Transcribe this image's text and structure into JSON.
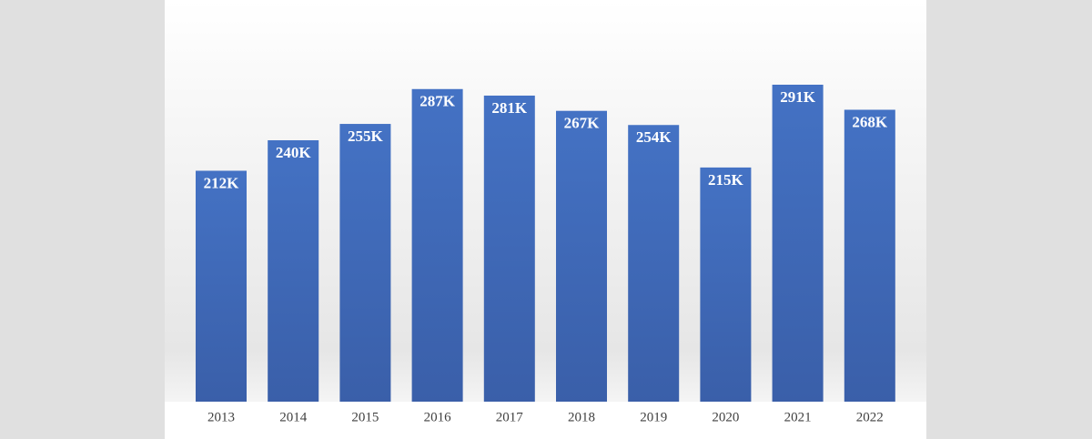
{
  "chart_data": {
    "type": "bar",
    "categories": [
      "2013",
      "2014",
      "2015",
      "2016",
      "2017",
      "2018",
      "2019",
      "2020",
      "2021",
      "2022"
    ],
    "values": [
      212000,
      240000,
      255000,
      287000,
      281000,
      267000,
      254000,
      215000,
      291000,
      268000
    ],
    "value_labels": [
      "212K",
      "240K",
      "255K",
      "287K",
      "281K",
      "267K",
      "254K",
      "215K",
      "291K",
      "268K"
    ],
    "color": "#4472c4"
  }
}
